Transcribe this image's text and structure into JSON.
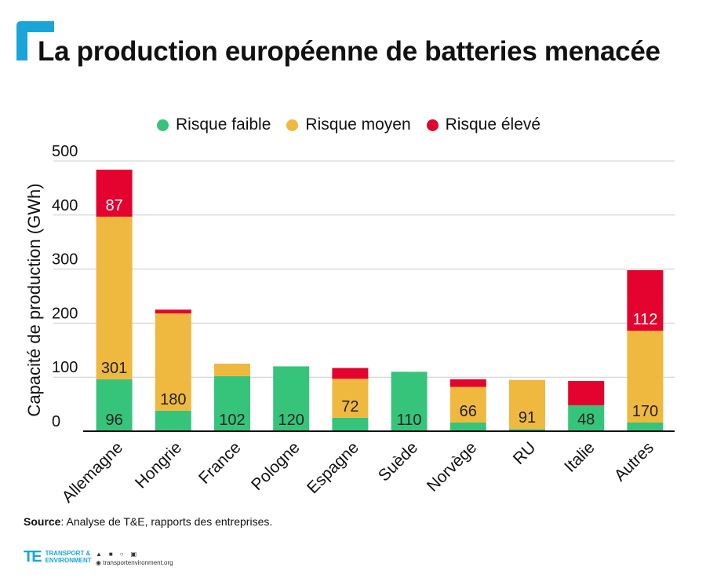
{
  "title": "La production européenne de batteries menacée",
  "legend": [
    {
      "label": "Risque faible",
      "color": "#36c47a"
    },
    {
      "label": "Risque moyen",
      "color": "#efb93f"
    },
    {
      "label": "Risque élevé",
      "color": "#e4032e"
    }
  ],
  "source": {
    "label": "Source",
    "text": ": Analyse de T&E, rapports des entreprises."
  },
  "footer": {
    "logo_mark": "TE",
    "logo_line1": "TRANSPORT &",
    "logo_line2": "ENVIRONMENT",
    "website": "transportenvironment.org"
  },
  "colors": {
    "accent": "#1aa5d8",
    "axis": "#111111",
    "grid": "#cccccc"
  },
  "chart_data": {
    "type": "bar",
    "stacked": true,
    "ylabel": "Capacité de production (GWh)",
    "ylim": [
      0,
      500
    ],
    "yticks": [
      0,
      100,
      200,
      300,
      400,
      500
    ],
    "grid": true,
    "legend_position": "top",
    "categories": [
      "Allemagne",
      "Hongrie",
      "France",
      "Pologne",
      "Espagne",
      "Suède",
      "Norvège",
      "RU",
      "Italie",
      "Autres"
    ],
    "series": [
      {
        "name": "Risque faible",
        "color": "#36c47a",
        "values": [
          96,
          38,
          102,
          120,
          25,
          110,
          16,
          4,
          48,
          16
        ]
      },
      {
        "name": "Risque moyen",
        "color": "#efb93f",
        "values": [
          301,
          180,
          23,
          0,
          72,
          0,
          66,
          91,
          0,
          170
        ]
      },
      {
        "name": "Risque élevé",
        "color": "#e4032e",
        "values": [
          87,
          7,
          0,
          0,
          20,
          0,
          14,
          0,
          45,
          112
        ]
      }
    ],
    "data_labels": [
      {
        "category": "Allemagne",
        "series": "Risque faible",
        "text": "96"
      },
      {
        "category": "Allemagne",
        "series": "Risque moyen",
        "text": "301"
      },
      {
        "category": "Allemagne",
        "series": "Risque élevé",
        "text": "87"
      },
      {
        "category": "Hongrie",
        "series": "Risque moyen",
        "text": "180"
      },
      {
        "category": "France",
        "series": "Risque faible",
        "text": "102"
      },
      {
        "category": "Pologne",
        "series": "Risque faible",
        "text": "120"
      },
      {
        "category": "Espagne",
        "series": "Risque moyen",
        "text": "72"
      },
      {
        "category": "Suède",
        "series": "Risque faible",
        "text": "110"
      },
      {
        "category": "Norvège",
        "series": "Risque moyen",
        "text": "66"
      },
      {
        "category": "RU",
        "series": "Risque moyen",
        "text": "91"
      },
      {
        "category": "Italie",
        "series": "Risque faible",
        "text": "48"
      },
      {
        "category": "Autres",
        "series": "Risque moyen",
        "text": "170"
      },
      {
        "category": "Autres",
        "series": "Risque élevé",
        "text": "112"
      }
    ]
  }
}
